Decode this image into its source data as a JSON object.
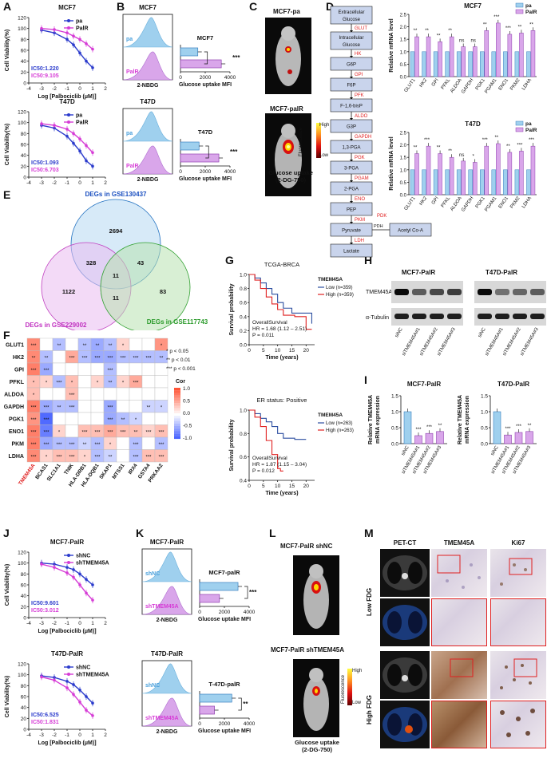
{
  "colors": {
    "pa": "#2b3bcc",
    "palr": "#d63cd6",
    "pa_fill": "#9fd0ee",
    "palr_fill": "#d9a6ea",
    "red": "#e02020",
    "blue": "#1a4fc0",
    "green": "#3aaa3a"
  },
  "panels": {
    "A": "A",
    "B": "B",
    "C": "C",
    "D": "D",
    "E": "E",
    "F": "F",
    "G": "G",
    "H": "H",
    "I": "I",
    "J": "J",
    "K": "K",
    "L": "L",
    "M": "M"
  },
  "A": {
    "charts": [
      {
        "title": "MCF7",
        "ylabel": "Cell Viability(%)",
        "xlabel": "Log [Palbociclib (μM)]",
        "legend": [
          "pa",
          "PalR"
        ],
        "ic50_a": "IC50:1.220",
        "ic50_b": "IC50:9.105",
        "yticks": [
          "0",
          "20",
          "40",
          "60",
          "80",
          "100",
          "120"
        ],
        "xticks": [
          "-4",
          "-3",
          "-2",
          "-1",
          "0",
          "1",
          "2"
        ]
      },
      {
        "title": "T47D",
        "ylabel": "Cell Viability(%)",
        "xlabel": "Log [Palbociclib (μM)]",
        "legend": [
          "pa",
          "PalR"
        ],
        "ic50_a": "IC50:1.093",
        "ic50_b": "IC50:6.703",
        "yticks": [
          "0",
          "20",
          "40",
          "60",
          "80",
          "100",
          "120"
        ],
        "xticks": [
          "-4",
          "-3",
          "-2",
          "-1",
          "0",
          "1",
          "2"
        ]
      }
    ],
    "curve_x": [
      -3,
      -2,
      -1,
      -0.5,
      0,
      0.5,
      1
    ],
    "mcf7_pa": [
      97,
      92,
      80,
      70,
      55,
      40,
      28
    ],
    "mcf7_palr": [
      100,
      98,
      92,
      86,
      80,
      72,
      62
    ],
    "t47d_pa": [
      95,
      90,
      75,
      62,
      48,
      30,
      20
    ],
    "t47d_palr": [
      98,
      95,
      88,
      80,
      70,
      58,
      45
    ]
  },
  "B": {
    "charts": [
      {
        "title": "MCF7",
        "hist_xlabel": "2-NBDG",
        "label_a": "pa",
        "label_b": "PalR",
        "bar_title": "MCF7",
        "bar_xlabel": "Glucose uptake MFI",
        "ticks": [
          "0",
          "2000",
          "4000"
        ],
        "sig": "***"
      },
      {
        "title": "T47D",
        "hist_xlabel": "2-NBDG",
        "label_a": "pa",
        "label_b": "PalR",
        "bar_title": "T47D",
        "bar_xlabel": "Glucose uptake MFI",
        "ticks": [
          "0",
          "2000",
          "4000"
        ],
        "sig": "***"
      }
    ],
    "mcf7_values": [
      1400,
      3300
    ],
    "t47d_values": [
      1500,
      3100
    ]
  },
  "C": {
    "top": "MCF7-pa",
    "bottom": "MCF7-palR",
    "scale_high": "High",
    "scale_low": "Low",
    "scale_title": "Fluorescence",
    "caption": "Glucose uptake\n(2-DG-750)"
  },
  "D": {
    "pathway": [
      "Extracellular Glucose",
      "Intracellular Glucose",
      "G6P",
      "F6P",
      "F-1,6-bisP",
      "G3P",
      "1,3-PGA",
      "3-PGA",
      "2-PGA",
      "PEP",
      "Pyruvate",
      "Lactate"
    ],
    "enzymes": [
      "GLUT",
      "HK",
      "GPI",
      "PFK",
      "ALDO",
      "GAPDH",
      "PGK",
      "PGAM",
      "ENO",
      "PKM",
      "LDH"
    ],
    "pdk": "PDK",
    "pdh": "PDH",
    "acetyl": "Acetyl Co-A",
    "charts": [
      {
        "title": "MCF7",
        "ylabel": "Relative mRNA level",
        "legend": [
          "pa",
          "PalR"
        ],
        "yticks": [
          "0.0",
          "0.5",
          "1.0",
          "1.5",
          "2.0",
          "2.5"
        ]
      },
      {
        "title": "T47D",
        "ylabel": "Relative mRNA level",
        "legend": [
          "pa",
          "PalR"
        ],
        "yticks": [
          "0.0",
          "0.5",
          "1.0",
          "1.5",
          "2.0",
          "2.5"
        ]
      }
    ],
    "genes": [
      "GLUT1",
      "HK2",
      "GPI",
      "PFKL",
      "ALDOA",
      "GAPDH",
      "PGK1",
      "PGAM1",
      "ENO1",
      "PKM2",
      "LDHA"
    ],
    "mcf7_palr": [
      1.6,
      1.6,
      1.4,
      1.6,
      1.2,
      1.2,
      1.85,
      2.15,
      1.7,
      1.75,
      1.85
    ],
    "mcf7_sig": [
      "**",
      "**",
      "**",
      "**",
      "ns",
      "ns",
      "**",
      "***",
      "***",
      "**",
      "**"
    ],
    "t47d_palr": [
      1.65,
      1.95,
      1.65,
      1.5,
      1.35,
      1.3,
      1.95,
      2.05,
      1.7,
      1.75,
      1.95
    ],
    "t47d_sig": [
      "**",
      "***",
      "**",
      "**",
      "ns",
      "*",
      "***",
      "**",
      "**",
      "***",
      "***"
    ]
  },
  "E": {
    "a_label": "DEGs in GSE130437",
    "b_label": "DEGs in GSE229002",
    "c_label": "DEGs in GSE117743",
    "a_only": "2694",
    "b_only": "1122",
    "c_only": "83",
    "ab": "328",
    "ac": "43",
    "bc": "11",
    "abc": "11"
  },
  "F": {
    "rows": [
      "GLUT1",
      "HK2",
      "GPI",
      "PFKL",
      "ALDOA",
      "GAPDH",
      "PGK1",
      "ENO1",
      "PKM",
      "LDHA"
    ],
    "cols": [
      "TMEM45A",
      "BCAS1",
      "SLC1A1",
      "TNIK",
      "HLA-DRB1",
      "HLA-DQB1",
      "SKAP1",
      "MTSS1",
      "IRX4",
      "GSTA4",
      "PRKAA2"
    ],
    "legend_title": "Cor",
    "legend_ticks": [
      "1.0",
      "0.5",
      "0.0",
      "-0.5",
      "-1.0"
    ],
    "notes": [
      "* p < 0.05",
      "** p < 0.01",
      "*** p < 0.001"
    ],
    "cor": [
      [
        0.55,
        0,
        -0.3,
        0,
        -0.3,
        -0.4,
        -0.3,
        0.2,
        0,
        0,
        0.5
      ],
      [
        0.55,
        -0.3,
        0,
        0.4,
        -0.3,
        -0.4,
        -0.4,
        -0.3,
        -0.3,
        -0.3,
        -0.3
      ],
      [
        0.6,
        -0.4,
        0,
        0,
        0,
        0,
        -0.3,
        0,
        0,
        0,
        0
      ],
      [
        0.3,
        0.2,
        -0.3,
        0.3,
        0,
        0.2,
        -0.3,
        0.2,
        0.4,
        0,
        0
      ],
      [
        0.3,
        0,
        0,
        0.3,
        0,
        0,
        0,
        0,
        0,
        0,
        0
      ],
      [
        0.6,
        -0.4,
        -0.3,
        -0.3,
        0,
        0,
        -0.4,
        0,
        0,
        -0.2,
        -0.2
      ],
      [
        0.5,
        -0.7,
        0,
        0,
        0,
        0,
        -0.4,
        -0.3,
        -0.2,
        0,
        0
      ],
      [
        0.6,
        -0.6,
        0.2,
        0,
        0.3,
        0.3,
        0.4,
        0.3,
        0.3,
        0.2,
        0.3
      ],
      [
        0.6,
        -0.4,
        -0.3,
        -0.3,
        -0.2,
        -0.3,
        0.2,
        0,
        -0.3,
        0,
        -0.3
      ],
      [
        0.55,
        0.2,
        0.3,
        0.3,
        0.2,
        -0.3,
        -0.2,
        0,
        -0.3,
        0.3,
        0.3
      ]
    ],
    "stars": [
      [
        "***",
        "",
        "**",
        "",
        "**",
        "**",
        "**",
        "*",
        "",
        "",
        "*"
      ],
      [
        "**",
        "**",
        "",
        "***",
        "***",
        "***",
        "***",
        "***",
        "***",
        "***",
        "**"
      ],
      [
        "***",
        "***",
        "",
        "",
        "",
        "",
        "***",
        "",
        "",
        "",
        ""
      ],
      [
        "*",
        "*",
        "***",
        "*",
        "",
        "*",
        "**",
        "*",
        "***",
        "",
        ""
      ],
      [
        "*",
        "",
        "",
        "***",
        "",
        "",
        "",
        "",
        "",
        "",
        ""
      ],
      [
        "***",
        "***",
        "**",
        "***",
        "",
        "",
        "***",
        "",
        "",
        "**",
        "*"
      ],
      [
        "***",
        "***",
        "",
        "",
        "",
        "",
        "***",
        "**",
        "*",
        "",
        ""
      ],
      [
        "***",
        "***",
        "*",
        "",
        "***",
        "***",
        "***",
        "***",
        "**",
        "***",
        "***"
      ],
      [
        "***",
        "***",
        "***",
        "***",
        "**",
        "***",
        "*",
        "",
        "***",
        "",
        "***"
      ],
      [
        "***",
        "*",
        "***",
        "***",
        "*",
        "***",
        "**",
        "",
        "***",
        "***",
        "***"
      ]
    ]
  },
  "G": {
    "charts": [
      {
        "title": "TCGA-BRCA",
        "legend_title": "TMEM45A",
        "low": "Low (n=359)",
        "high": "High (n=359)",
        "stat1": "OverallSurvival",
        "stat2": "HR = 1.68 (1.12 – 2.51)",
        "stat3": "P = 0.011",
        "ylabel": "Survival probability",
        "xlabel": "Time (years)",
        "yticks": [
          "0.0",
          "0.2",
          "0.4",
          "0.6",
          "0.8",
          "1.0"
        ],
        "xticks": [
          "0",
          "5",
          "10",
          "15",
          "20"
        ]
      },
      {
        "title": "ER status: Positive",
        "legend_title": "TMEM45A",
        "low": "Low (n=263)",
        "high": "High (n=263)",
        "stat1": "OverallSurvival",
        "stat2": "HR = 1.87 (1.15 – 3.04)",
        "stat3": "P = 0.012",
        "ylabel": "Survival probability",
        "xlabel": "Time (years)",
        "yticks": [
          "0.4",
          "0.6",
          "0.8",
          "1.0"
        ],
        "xticks": [
          "0",
          "5",
          "10",
          "15",
          "20"
        ]
      }
    ]
  },
  "H": {
    "blot1": "MCF7-PalR",
    "blot2": "T47D-PalR",
    "row1": "TMEM45A",
    "row2": "α-Tubulin",
    "lanes": [
      "siNC",
      "siTMEM45A#1",
      "siTMEM45A#2",
      "siTMEM45A#3"
    ]
  },
  "I": {
    "charts": [
      {
        "title": "MCF7-PalR",
        "ylabel": "Relative TMEM45A\nmRNA expression",
        "yticks": [
          "0.0",
          "0.5",
          "1.0",
          "1.5"
        ],
        "sig": [
          "***",
          "***",
          "**"
        ]
      },
      {
        "title": "T47D-PalR",
        "ylabel": "Relative TMEM45A\nmRNA expression",
        "yticks": [
          "0.0",
          "0.5",
          "1.0",
          "1.5"
        ],
        "sig": [
          "***",
          "***",
          "**"
        ]
      }
    ],
    "lanes": [
      "siNC",
      "siTMEM45A#1",
      "siTMEM45A#2",
      "siTMEM45A#3"
    ],
    "mcf7_values": [
      1.0,
      0.25,
      0.32,
      0.38
    ],
    "t47d_values": [
      1.0,
      0.27,
      0.35,
      0.38
    ]
  },
  "J": {
    "charts": [
      {
        "title": "MCF7-PalR",
        "legend": [
          "shNC",
          "shTMEM45A"
        ],
        "ic50_a": "IC50:9.601",
        "ic50_b": "IC50:3.012",
        "ylabel": "Cell Viability(%)",
        "xlabel": "Log [Palbociclib (μM)]",
        "yticks": [
          "0",
          "20",
          "40",
          "60",
          "80",
          "100",
          "120"
        ],
        "xticks": [
          "-4",
          "-3",
          "-2",
          "-1",
          "0",
          "1",
          "2"
        ]
      },
      {
        "title": "T47D-PalR",
        "legend": [
          "shNC",
          "shTMEM45A"
        ],
        "ic50_a": "IC50:6.525",
        "ic50_b": "IC50:1.831",
        "ylabel": "Cell Viability(%)",
        "xlabel": "Log [Palbociclib (μM)]",
        "yticks": [
          "0",
          "20",
          "40",
          "60",
          "80",
          "100",
          "120"
        ],
        "xticks": [
          "-4",
          "-3",
          "-2",
          "-1",
          "0",
          "1",
          "2"
        ]
      }
    ],
    "mcf7_nc": [
      100,
      98,
      92,
      88,
      80,
      70,
      60
    ],
    "mcf7_sh": [
      98,
      92,
      82,
      74,
      60,
      45,
      32
    ],
    "t47d_nc": [
      98,
      95,
      88,
      82,
      72,
      60,
      48
    ],
    "t47d_sh": [
      96,
      90,
      76,
      64,
      50,
      35,
      25
    ]
  },
  "K": {
    "charts": [
      {
        "title": "MCF7-PalR",
        "hist_xlabel": "2-NBDG",
        "label_a": "shNC",
        "label_b": "shTMEM45A",
        "bar_title": "MCF7-palR",
        "bar_xlabel": "Glucose uptake MFI",
        "ticks": [
          "0",
          "2000",
          "4000"
        ],
        "sig": "***"
      },
      {
        "title": "T47D-PalR",
        "hist_xlabel": "2-NBDG",
        "label_a": "shNC",
        "label_b": "shTMEM45A",
        "bar_title": "T-47D-palR",
        "bar_xlabel": "Glucose uptake MFI",
        "ticks": [
          "0",
          "2000",
          "4000"
        ],
        "sig": "**"
      }
    ],
    "mcf7_values": [
      3100,
      1600
    ],
    "t47d_values": [
      2600,
      1200
    ]
  },
  "L": {
    "top": "MCF7-PalR shNC",
    "bottom": "MCF7-PalR shTMEM45A",
    "scale_high": "High",
    "scale_low": "Low",
    "scale_title": "Fluorescence",
    "caption": "Glucose uptake\n(2-DG-750)"
  },
  "M": {
    "cols": [
      "PET-CT",
      "TMEM45A",
      "Ki67"
    ],
    "rows": [
      "Low FDG",
      "High FDG"
    ]
  }
}
